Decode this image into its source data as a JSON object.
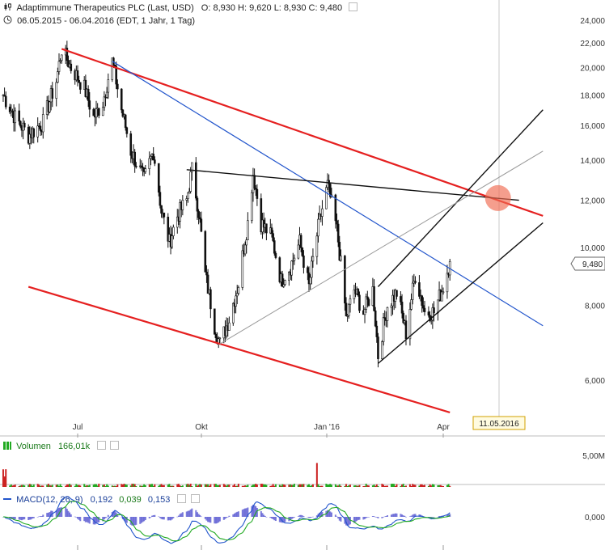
{
  "header": {
    "title": "Adaptimmune Therapeutics PLC (Last, USD)",
    "ohlc": "O: 8,930  H: 9,620  L: 8,930  C: 9,480",
    "range": "06.05.2015 - 06.04.2016 (EDT, 1 Jahr, 1 Tag)"
  },
  "x_labels": [
    "Jul",
    "Okt",
    "Jan '16",
    "Apr"
  ],
  "date_marker": "11.05.2016",
  "last_price_label": "9,480",
  "volume": {
    "label": "Volumen",
    "value": "166,01k",
    "axis_label": "5,00M"
  },
  "macd": {
    "label": "MACD(12, 26, 9)",
    "v1": "0,192",
    "v2": "0,039",
    "v3": "0,153",
    "axis_label": "0,000"
  },
  "colors": {
    "price": "#111111",
    "trend_red": "#e52020",
    "trend_blue": "#2255cc",
    "volume": "#22aa22",
    "macd_hist": "#4444cc",
    "signal": "#22aa22"
  },
  "chart_data": {
    "type": "candlestick",
    "y_scale": "log",
    "ylim": [
      5.2,
      25.0
    ],
    "y_ticks": [
      6,
      8,
      10,
      12,
      14,
      16,
      18,
      20,
      22,
      24
    ],
    "y_tick_labels": [
      "6,000",
      "8,000",
      "10,000",
      "12,000",
      "14,000",
      "16,000",
      "18,000",
      "20,000",
      "22,000",
      "24,000"
    ],
    "close_path": [
      [
        "2015-05-06",
        18.0
      ],
      [
        "2015-05-15",
        16.5
      ],
      [
        "2015-05-25",
        15.4
      ],
      [
        "2015-06-05",
        16.2
      ],
      [
        "2015-06-15",
        19.0
      ],
      [
        "2015-06-19",
        21.5
      ],
      [
        "2015-06-26",
        20.0
      ],
      [
        "2015-07-06",
        18.5
      ],
      [
        "2015-07-13",
        16.5
      ],
      [
        "2015-07-20",
        17.5
      ],
      [
        "2015-07-27",
        20.5
      ],
      [
        "2015-08-03",
        17.0
      ],
      [
        "2015-08-10",
        14.5
      ],
      [
        "2015-08-20",
        13.0
      ],
      [
        "2015-08-27",
        14.5
      ],
      [
        "2015-09-02",
        11.5
      ],
      [
        "2015-09-08",
        10.2
      ],
      [
        "2015-09-14",
        11.3
      ],
      [
        "2015-09-21",
        12.0
      ],
      [
        "2015-09-25",
        13.5
      ],
      [
        "2015-09-30",
        11.5
      ],
      [
        "2015-10-05",
        9.0
      ],
      [
        "2015-10-12",
        7.4
      ],
      [
        "2015-10-16",
        6.9
      ],
      [
        "2015-10-23",
        7.6
      ],
      [
        "2015-10-30",
        8.7
      ],
      [
        "2015-11-06",
        11.0
      ],
      [
        "2015-11-10",
        13.3
      ],
      [
        "2015-11-16",
        11.0
      ],
      [
        "2015-11-24",
        10.4
      ],
      [
        "2015-12-01",
        8.8
      ],
      [
        "2015-12-08",
        9.3
      ],
      [
        "2015-12-15",
        10.2
      ],
      [
        "2015-12-22",
        8.6
      ],
      [
        "2015-12-29",
        10.8
      ],
      [
        "2016-01-05",
        12.7
      ],
      [
        "2016-01-12",
        10.7
      ],
      [
        "2016-01-19",
        7.6
      ],
      [
        "2016-01-25",
        8.5
      ],
      [
        "2016-02-01",
        7.8
      ],
      [
        "2016-02-08",
        8.5
      ],
      [
        "2016-02-12",
        6.6
      ],
      [
        "2016-02-19",
        8.0
      ],
      [
        "2016-02-26",
        8.4
      ],
      [
        "2016-03-04",
        7.2
      ],
      [
        "2016-03-11",
        9.0
      ],
      [
        "2016-03-18",
        7.8
      ],
      [
        "2016-03-25",
        7.8
      ],
      [
        "2016-04-01",
        8.6
      ],
      [
        "2016-04-06",
        9.48
      ]
    ],
    "trendlines": [
      {
        "color": "red",
        "from": [
          "2015-06-19",
          21.5
        ],
        "to": [
          "2016-06-15",
          11.3
        ]
      },
      {
        "color": "red",
        "from": [
          "2015-05-25",
          8.6
        ],
        "to": [
          "2016-04-06",
          5.3
        ]
      },
      {
        "color": "blue",
        "from": [
          "2015-07-27",
          20.5
        ],
        "to": [
          "2016-06-15",
          7.4
        ]
      },
      {
        "color": "black",
        "from": [
          "2015-09-21",
          13.5
        ],
        "to": [
          "2016-05-28",
          12.0
        ]
      },
      {
        "color": "black",
        "from": [
          "2016-02-12",
          6.4
        ],
        "to": [
          "2016-06-15",
          11.0
        ]
      },
      {
        "color": "black",
        "from": [
          "2016-02-12",
          8.6
        ],
        "to": [
          "2016-06-15",
          17.0
        ]
      },
      {
        "color": "gray",
        "from": [
          "2015-10-16",
          6.9
        ],
        "to": [
          "2016-06-15",
          14.5
        ]
      }
    ],
    "volume": {
      "series": "daily",
      "spike_date": "2015-12-28",
      "ylim": [
        0,
        5000000
      ]
    },
    "macd": {
      "ylim": [
        -1.2,
        1.2
      ]
    }
  }
}
